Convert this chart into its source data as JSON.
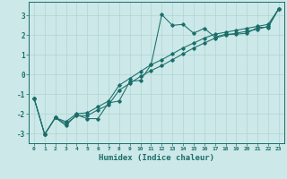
{
  "xlabel": "Humidex (Indice chaleur)",
  "bg_color": "#cce8e8",
  "line_color": "#1a6e6a",
  "grid_color": "#b0d4d4",
  "xlim": [
    -0.5,
    23.5
  ],
  "ylim": [
    -3.5,
    3.7
  ],
  "xticks": [
    0,
    1,
    2,
    3,
    4,
    5,
    6,
    7,
    8,
    9,
    10,
    11,
    12,
    13,
    14,
    15,
    16,
    17,
    18,
    19,
    20,
    21,
    22,
    23
  ],
  "yticks": [
    -3,
    -2,
    -1,
    0,
    1,
    2,
    3
  ],
  "line1_x": [
    0,
    1,
    2,
    3,
    4,
    5,
    6,
    7,
    8,
    9,
    10,
    11,
    12,
    13,
    14,
    15,
    16,
    17,
    18,
    19,
    20,
    21,
    22,
    23
  ],
  "line1_y": [
    -1.2,
    -3.05,
    -2.2,
    -2.6,
    -2.05,
    -2.25,
    -2.25,
    -1.45,
    -1.35,
    -0.35,
    -0.3,
    0.5,
    3.05,
    2.5,
    2.55,
    2.1,
    2.35,
    1.9,
    2.05,
    2.05,
    2.1,
    2.4,
    2.4,
    3.35
  ],
  "line2_x": [
    0,
    1,
    2,
    3,
    4,
    5,
    6,
    7,
    8,
    9,
    10,
    11,
    12,
    13,
    14,
    15,
    16,
    17,
    18,
    19,
    20,
    21,
    22,
    23
  ],
  "line2_y": [
    -1.2,
    -3.05,
    -2.2,
    -2.5,
    -2.1,
    -2.1,
    -1.8,
    -1.55,
    -0.8,
    -0.45,
    -0.1,
    0.2,
    0.45,
    0.75,
    1.05,
    1.35,
    1.6,
    1.85,
    2.0,
    2.1,
    2.2,
    2.3,
    2.45,
    3.35
  ],
  "line3_x": [
    0,
    1,
    2,
    3,
    4,
    5,
    6,
    7,
    8,
    9,
    10,
    11,
    12,
    13,
    14,
    15,
    16,
    17,
    18,
    19,
    20,
    21,
    22,
    23
  ],
  "line3_y": [
    -1.2,
    -3.05,
    -2.2,
    -2.4,
    -2.0,
    -1.95,
    -1.65,
    -1.35,
    -0.55,
    -0.2,
    0.15,
    0.5,
    0.75,
    1.05,
    1.35,
    1.6,
    1.85,
    2.05,
    2.15,
    2.25,
    2.35,
    2.45,
    2.55,
    3.35
  ]
}
